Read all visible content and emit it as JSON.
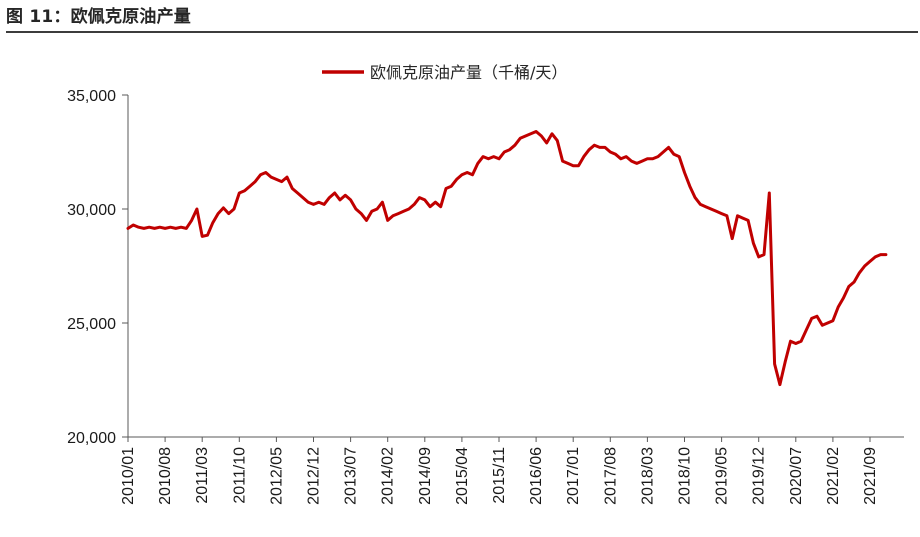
{
  "figure_title": "图 11：欧佩克原油产量",
  "chart_data": {
    "type": "line",
    "title": "",
    "xlabel": "",
    "ylabel": "",
    "ylim": [
      20000,
      35000
    ],
    "yticks": [
      20000,
      25000,
      30000,
      35000
    ],
    "ytick_labels": [
      "20,000",
      "25,000",
      "30,000",
      "35,000"
    ],
    "xtick_labels": [
      "2010/01",
      "2010/08",
      "2011/03",
      "2011/10",
      "2012/05",
      "2012/12",
      "2013/07",
      "2014/02",
      "2014/09",
      "2015/04",
      "2015/11",
      "2016/06",
      "2017/01",
      "2017/08",
      "2018/03",
      "2018/10",
      "2019/05",
      "2019/12",
      "2020/07",
      "2021/02",
      "2021/09"
    ],
    "grid": false,
    "legend_position": "top-center",
    "color": "#c00000",
    "series": [
      {
        "name": "欧佩克原油产量（千桶/天）",
        "x": [
          "2010/01",
          "2010/02",
          "2010/03",
          "2010/04",
          "2010/05",
          "2010/06",
          "2010/07",
          "2010/08",
          "2010/09",
          "2010/10",
          "2010/11",
          "2010/12",
          "2011/01",
          "2011/02",
          "2011/03",
          "2011/04",
          "2011/05",
          "2011/06",
          "2011/07",
          "2011/08",
          "2011/09",
          "2011/10",
          "2011/11",
          "2011/12",
          "2012/01",
          "2012/02",
          "2012/03",
          "2012/04",
          "2012/05",
          "2012/06",
          "2012/07",
          "2012/08",
          "2012/09",
          "2012/10",
          "2012/11",
          "2012/12",
          "2013/01",
          "2013/02",
          "2013/03",
          "2013/04",
          "2013/05",
          "2013/06",
          "2013/07",
          "2013/08",
          "2013/09",
          "2013/10",
          "2013/11",
          "2013/12",
          "2014/01",
          "2014/02",
          "2014/03",
          "2014/04",
          "2014/05",
          "2014/06",
          "2014/07",
          "2014/08",
          "2014/09",
          "2014/10",
          "2014/11",
          "2014/12",
          "2015/01",
          "2015/02",
          "2015/03",
          "2015/04",
          "2015/05",
          "2015/06",
          "2015/07",
          "2015/08",
          "2015/09",
          "2015/10",
          "2015/11",
          "2015/12",
          "2016/01",
          "2016/02",
          "2016/03",
          "2016/04",
          "2016/05",
          "2016/06",
          "2016/07",
          "2016/08",
          "2016/09",
          "2016/10",
          "2016/11",
          "2016/12",
          "2017/01",
          "2017/02",
          "2017/03",
          "2017/04",
          "2017/05",
          "2017/06",
          "2017/07",
          "2017/08",
          "2017/09",
          "2017/10",
          "2017/11",
          "2017/12",
          "2018/01",
          "2018/02",
          "2018/03",
          "2018/04",
          "2018/05",
          "2018/06",
          "2018/07",
          "2018/08",
          "2018/09",
          "2018/10",
          "2018/11",
          "2018/12",
          "2019/01",
          "2019/02",
          "2019/03",
          "2019/04",
          "2019/05",
          "2019/06",
          "2019/07",
          "2019/08",
          "2019/09",
          "2019/10",
          "2019/11",
          "2019/12",
          "2020/01",
          "2020/02",
          "2020/03",
          "2020/04",
          "2020/05",
          "2020/06",
          "2020/07",
          "2020/08",
          "2020/09",
          "2020/10",
          "2020/11",
          "2020/12",
          "2021/01",
          "2021/02",
          "2021/03",
          "2021/04",
          "2021/05",
          "2021/06",
          "2021/07",
          "2021/08",
          "2021/09",
          "2021/10",
          "2021/11",
          "2021/12"
        ],
        "values": [
          29150,
          29300,
          29200,
          29150,
          29200,
          29150,
          29200,
          29150,
          29200,
          29150,
          29200,
          29150,
          29500,
          30000,
          28800,
          28850,
          29400,
          29800,
          30050,
          29800,
          30000,
          30700,
          30800,
          31000,
          31200,
          31500,
          31600,
          31400,
          31300,
          31200,
          31400,
          30900,
          30700,
          30500,
          30300,
          30200,
          30300,
          30200,
          30500,
          30700,
          30400,
          30600,
          30400,
          30000,
          29800,
          29500,
          29900,
          30000,
          30300,
          29500,
          29700,
          29800,
          29900,
          30000,
          30200,
          30500,
          30400,
          30100,
          30300,
          30100,
          30900,
          31000,
          31300,
          31500,
          31600,
          31500,
          32000,
          32300,
          32200,
          32300,
          32200,
          32500,
          32600,
          32800,
          33100,
          33200,
          33300,
          33400,
          33200,
          32900,
          33300,
          33000,
          32100,
          32000,
          31900,
          31900,
          32300,
          32600,
          32800,
          32700,
          32700,
          32500,
          32400,
          32200,
          32300,
          32100,
          32000,
          32100,
          32200,
          32200,
          32300,
          32500,
          32700,
          32400,
          32300,
          31600,
          31000,
          30500,
          30200,
          30100,
          30000,
          29900,
          29800,
          29700,
          28700,
          29700,
          29600,
          29500,
          28500,
          27900,
          28000,
          30700,
          23200,
          22300,
          23300,
          24200,
          24100,
          24200,
          24700,
          25200,
          25300,
          24900,
          25000,
          25100,
          25700,
          26100,
          26600,
          26800,
          27200,
          27500,
          27700,
          27900,
          28000,
          28000
        ]
      }
    ]
  }
}
